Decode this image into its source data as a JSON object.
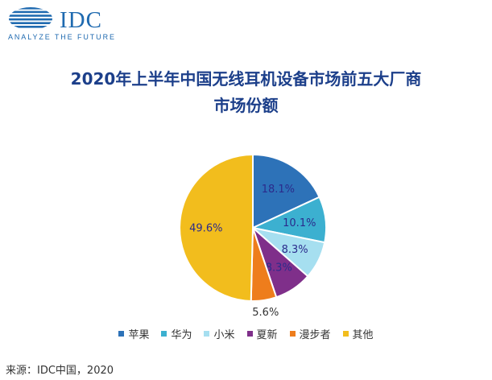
{
  "logo": {
    "name": "IDC",
    "tagline": "ANALYZE THE FUTURE",
    "color": "#1f6ab0"
  },
  "title_line1": "2020年上半年中国无线耳机设备市场前五大厂商",
  "title_line2": "市场份额",
  "source": "来源：IDC中国，2020",
  "chart_data": {
    "type": "pie",
    "title": "2020年上半年中国无线耳机设备市场前五大厂商市场份额",
    "slices": [
      {
        "label": "苹果",
        "value": 18.1,
        "display": "18.1%",
        "color": "#2d72b8"
      },
      {
        "label": "华为",
        "value": 10.1,
        "display": "10.1%",
        "color": "#3cb0d0"
      },
      {
        "label": "小米",
        "value": 8.3,
        "display": "8.3%",
        "color": "#a6dff0"
      },
      {
        "label": "夏新",
        "value": 8.3,
        "display": "8.3%",
        "color": "#7f2f8a"
      },
      {
        "label": "漫步者",
        "value": 5.6,
        "display": "5.6%",
        "color": "#ee7d1c"
      },
      {
        "label": "其他",
        "value": 49.6,
        "display": "49.6%",
        "color": "#f2bd1d"
      }
    ],
    "legend_position": "bottom",
    "label_color": "#2b2b8c"
  }
}
